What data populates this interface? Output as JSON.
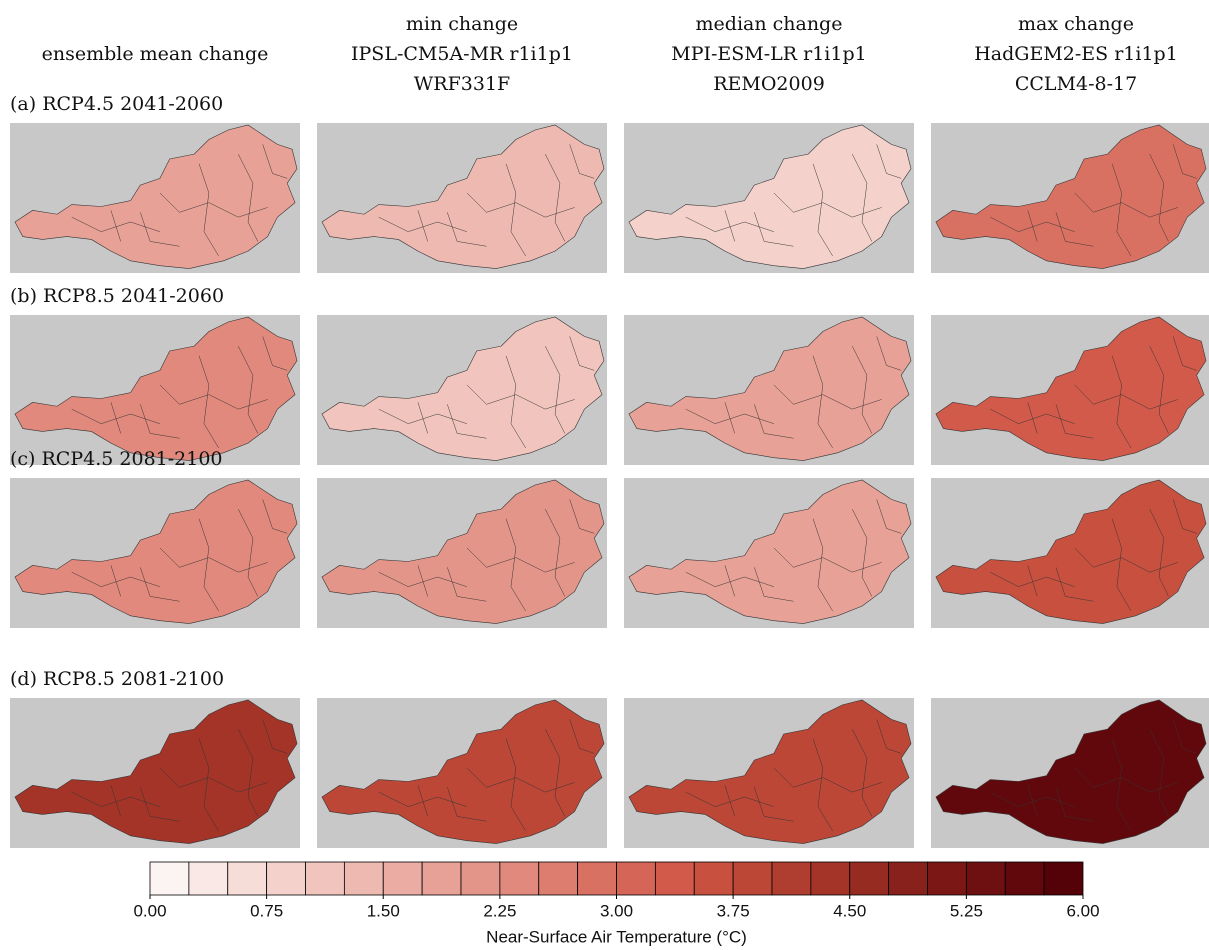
{
  "figure": {
    "columns": [
      {
        "lines": [
          "ensemble mean change"
        ]
      },
      {
        "lines": [
          "min change",
          "IPSL-CM5A-MR r1i1p1",
          "WRF331F"
        ]
      },
      {
        "lines": [
          "median change",
          "MPI-ESM-LR r1i1p1",
          "REMO2009"
        ]
      },
      {
        "lines": [
          "max change",
          "HadGEM2-ES r1i1p1",
          "CCLM4-8-17"
        ]
      }
    ],
    "rows": [
      {
        "label": "(a) RCP4.5 2041-2060",
        "values": [
          1.9,
          1.4,
          0.9,
          2.8
        ]
      },
      {
        "label": "(b) RCP8.5 2041-2060",
        "values": [
          2.3,
          1.2,
          1.8,
          3.3
        ]
      },
      {
        "label": "(c) RCP4.5 2081-2100",
        "values": [
          2.4,
          2.1,
          1.8,
          3.5
        ]
      },
      {
        "label": "(d) RCP8.5 2081-2100",
        "values": [
          4.3,
          3.8,
          3.8,
          5.6
        ]
      }
    ],
    "colorbar": {
      "label": "Near-Surface Air Temperature (°C)",
      "clim": [
        0,
        6
      ],
      "ticks": [
        {
          "value": 0,
          "label": "0.00"
        },
        {
          "value": 0.75,
          "label": "0.75"
        },
        {
          "value": 1.5,
          "label": "1.50"
        },
        {
          "value": 2.25,
          "label": "2.25"
        },
        {
          "value": 3,
          "label": "3.00"
        },
        {
          "value": 3.75,
          "label": "3.75"
        },
        {
          "value": 4.5,
          "label": "4.50"
        },
        {
          "value": 5.25,
          "label": "5.25"
        },
        {
          "value": 6,
          "label": "6.00"
        }
      ],
      "colors": [
        "#fcf4f2",
        "#f9e8e5",
        "#f7ddd8",
        "#f4d1cb",
        "#f1c5bd",
        "#eeb9b0",
        "#ebada3",
        "#e8a196",
        "#e49589",
        "#e1897c",
        "#dd7d70",
        "#d97163",
        "#d56556",
        "#d15a4a",
        "#c8503f",
        "#bc4737",
        "#b03e30",
        "#a43428",
        "#962b22",
        "#88211c",
        "#7b1816",
        "#6e1011",
        "#61080c",
        "#540208"
      ]
    }
  }
}
